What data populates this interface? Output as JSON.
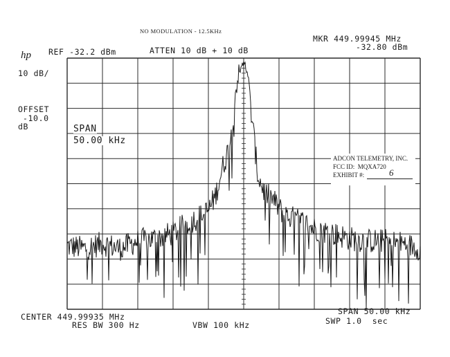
{
  "header": {
    "note": "NO MODULATION - 12.5KHz",
    "ref": "REF -32.2 dBm",
    "atten": "ATTEN 10 dB + 10 dB",
    "marker_line1": "MKR 449.99945 MHz",
    "marker_line2": "-32.80 dBm",
    "logo": "hp"
  },
  "left_panel": {
    "scale": "10 dB/",
    "offset_label": "OFFSET",
    "offset_value": "-10.0",
    "offset_unit": "dB"
  },
  "span_box": {
    "label": "SPAN",
    "value": "50.00 kHz"
  },
  "exhibit": {
    "line1": "ADCON TELEMETRY, INC.",
    "line2": "FCC ID:  MQXA720",
    "line3": "EXHIBIT #:",
    "number": "6"
  },
  "footer": {
    "center": "CENTER 449.99935 MHz",
    "span": "SPAN 50.00 kHz",
    "res_bw": "RES BW 300 Hz",
    "vbw": "VBW 100 kHz",
    "swp": "SWP 1.0  sec"
  },
  "chart_data": {
    "type": "line",
    "x_unit": "kHz offset from center (449.99935 MHz)",
    "y_unit": "dBm",
    "xlim": [
      -25,
      25
    ],
    "ylim": [
      -132.2,
      -32.2
    ],
    "grid": true,
    "x": [
      -25,
      -22.5,
      -20,
      -17.5,
      -15,
      -12.5,
      -10,
      -8,
      -6,
      -5,
      -4,
      -3,
      -2,
      -1.5,
      -1,
      -0.5,
      0,
      0.5,
      1,
      1.5,
      2,
      3,
      4,
      5,
      6,
      8,
      10,
      12.5,
      15,
      17.5,
      20,
      22.5,
      25
    ],
    "series": [
      {
        "values": [
          -107,
          -108,
          -106,
          -108,
          -105,
          -104,
          -102,
          -98,
          -95,
          -93,
          -87,
          -76,
          -67,
          -55,
          -42,
          -37,
          -33,
          -38,
          -52,
          -65,
          -79,
          -86,
          -88,
          -92,
          -95,
          -97,
          -100,
          -102,
          -104,
          -105,
          -105,
          -106,
          -108
        ]
      }
    ],
    "marker": {
      "freq": "449.99945 MHz",
      "level": "-32.80 dBm"
    }
  }
}
